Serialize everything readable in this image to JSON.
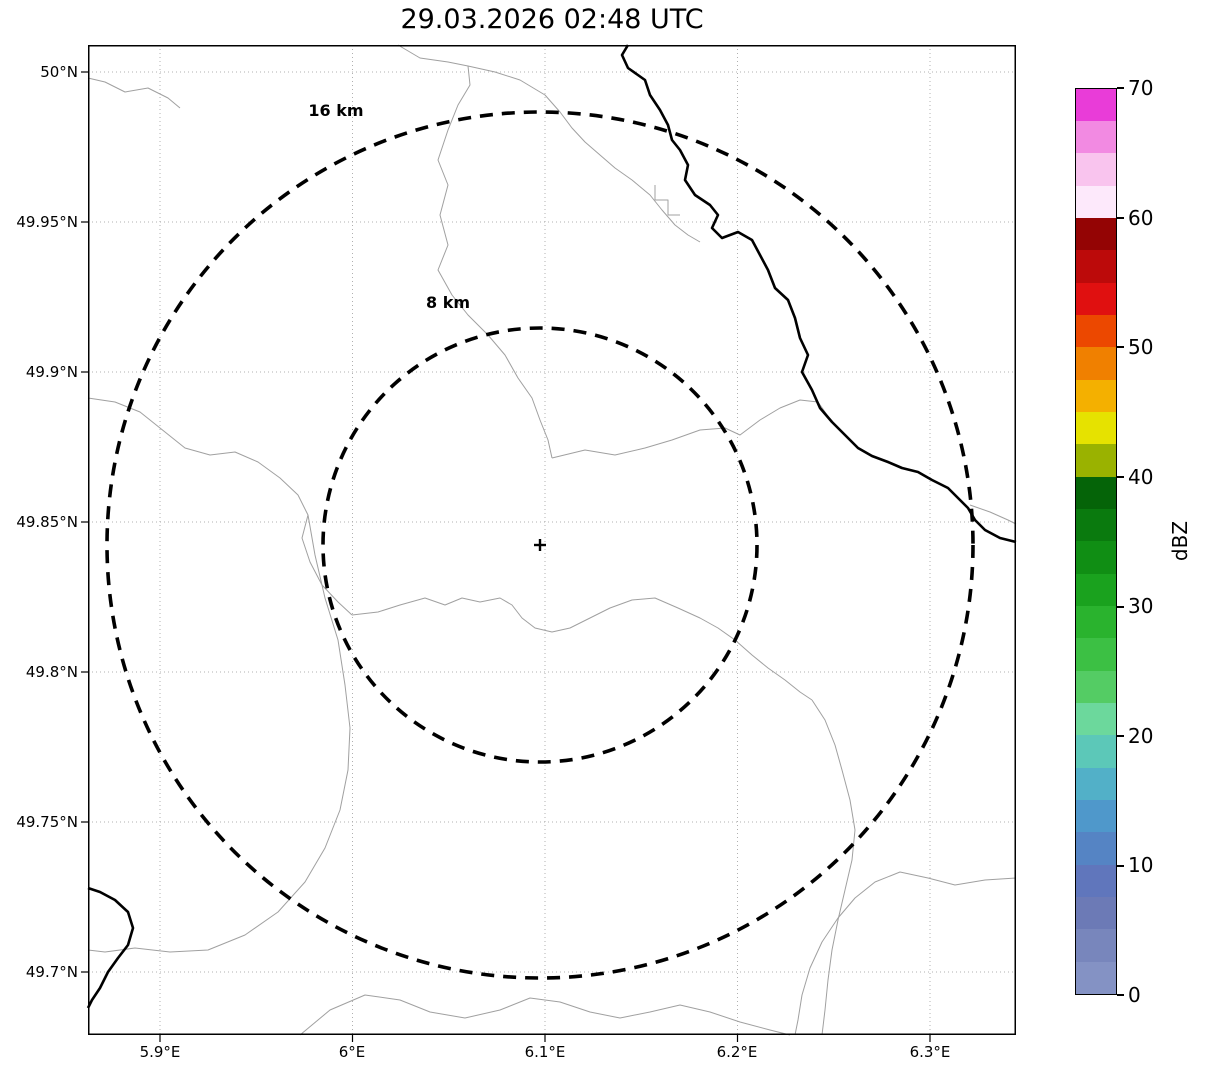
{
  "title": "29.03.2026 02:48 UTC",
  "map": {
    "x_tick_labels": [
      "5.9°E",
      "6°E",
      "6.1°E",
      "6.2°E",
      "6.3°E"
    ],
    "y_tick_labels": [
      "50°N",
      "49.95°N",
      "49.9°N",
      "49.85°N",
      "49.8°N",
      "49.75°N",
      "49.7°N"
    ],
    "rings": [
      {
        "label": "16 km",
        "radius_km": 16
      },
      {
        "label": "8 km",
        "radius_km": 8
      }
    ],
    "center_marker": "+"
  },
  "colorbar": {
    "axis_label": "dBZ",
    "tick_labels": [
      "70",
      "60",
      "50",
      "40",
      "30",
      "20",
      "10",
      "0"
    ],
    "min": 0,
    "max": 70,
    "colors_bottom_to_top": [
      "#8492c4",
      "#7886bc",
      "#6c7ab6",
      "#6076bc",
      "#5584c4",
      "#4f98cb",
      "#52b0c8",
      "#5cc8b8",
      "#6cd89c",
      "#54cc64",
      "#3cc044",
      "#2ab32e",
      "#1aa21e",
      "#108e14",
      "#0a7a0e",
      "#056408",
      "#9ab200",
      "#e6e200",
      "#f4b000",
      "#f08000",
      "#ec4800",
      "#e01010",
      "#bc0a0a",
      "#940404",
      "#fde9fb",
      "#f9c4ee",
      "#f28ae2",
      "#e93cd8"
    ]
  },
  "chart_data": {
    "type": "map",
    "title": "29.03.2026 02:48 UTC",
    "x_axis_ticks": [
      "5.9°E",
      "6°E",
      "6.1°E",
      "6.2°E",
      "6.3°E"
    ],
    "y_axis_ticks": [
      "50°N",
      "49.95°N",
      "49.9°N",
      "49.85°N",
      "49.8°N",
      "49.75°N",
      "49.7°N"
    ],
    "colorbar": {
      "label": "dBZ",
      "range": [
        0,
        70
      ],
      "tick_step": 10
    },
    "range_rings_km": [
      8,
      16
    ],
    "grid": "dotted"
  }
}
